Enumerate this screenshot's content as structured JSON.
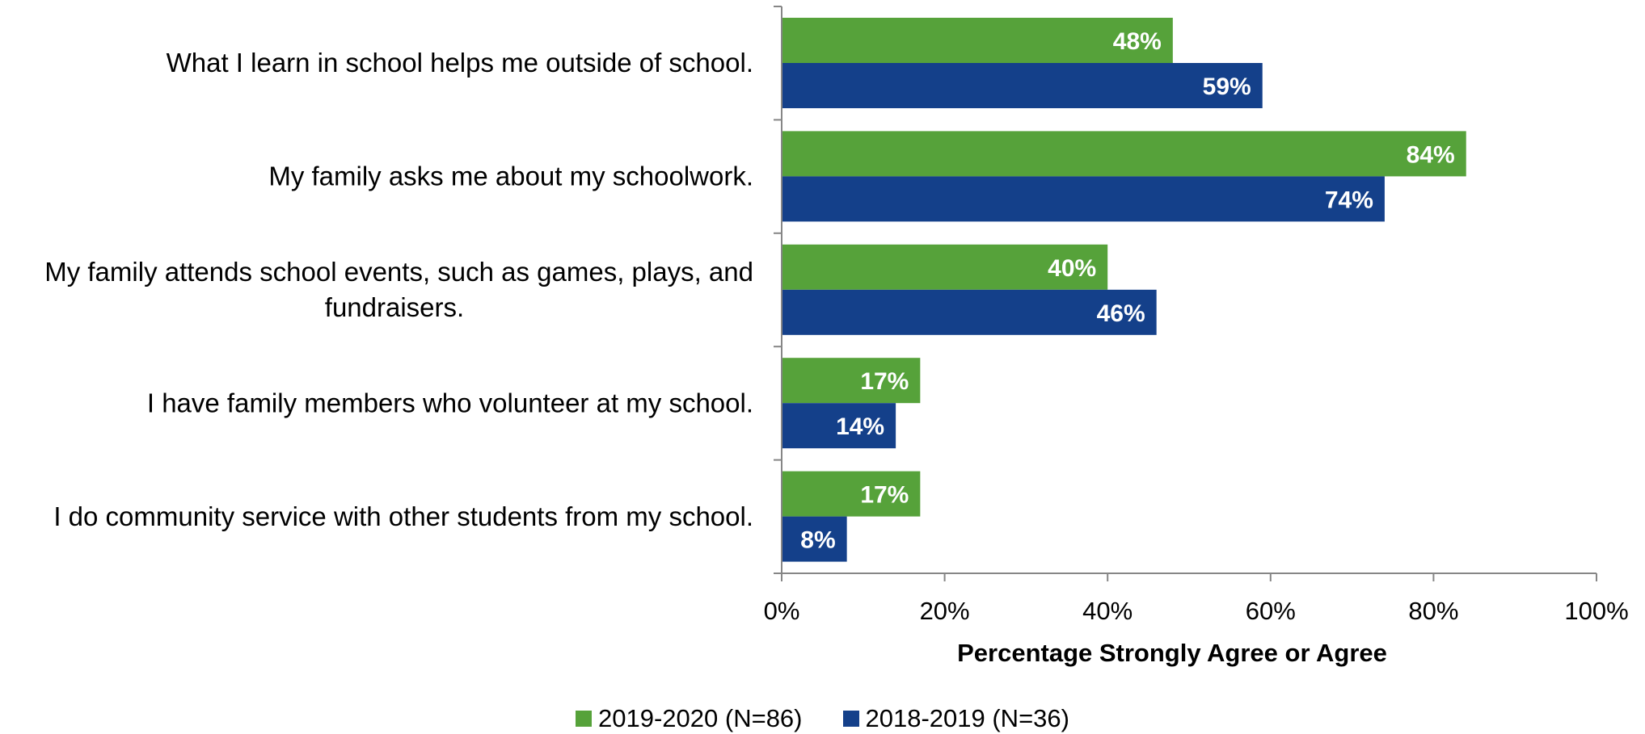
{
  "chart_data": {
    "type": "bar",
    "orientation": "horizontal",
    "categories": [
      "What I learn in school helps me outside of school.",
      "My family asks me about my schoolwork.",
      "My family attends school events, such as games, plays, and fundraisers.",
      "I have family members who volunteer at my school.",
      "I do community service with other students from my school."
    ],
    "category_lines": [
      [
        "What I learn in school helps me outside of school."
      ],
      [
        "My family asks me about my schoolwork."
      ],
      [
        "My family attends school events, such as games, plays, and",
        "fundraisers."
      ],
      [
        "I have family members who volunteer at my school."
      ],
      [
        "I do community service with other students from my school."
      ]
    ],
    "series": [
      {
        "name": "2019-2020 (N=86)",
        "color": "#56A23A",
        "values": [
          48,
          84,
          40,
          17,
          17
        ],
        "labels": [
          "48%",
          "84%",
          "40%",
          "17%",
          "17%"
        ]
      },
      {
        "name": "2018-2019 (N=36)",
        "color": "#14408A",
        "values": [
          59,
          74,
          46,
          14,
          8
        ],
        "labels": [
          "59%",
          "74%",
          "46%",
          "14%",
          "8%"
        ]
      }
    ],
    "xlim": [
      0,
      100
    ],
    "xticks": [
      "0%",
      "20%",
      "40%",
      "60%",
      "80%",
      "100%"
    ],
    "xlabel": "Percentage Strongly Agree or Agree",
    "ylabel": "",
    "grid": false,
    "legend_position": "bottom"
  }
}
